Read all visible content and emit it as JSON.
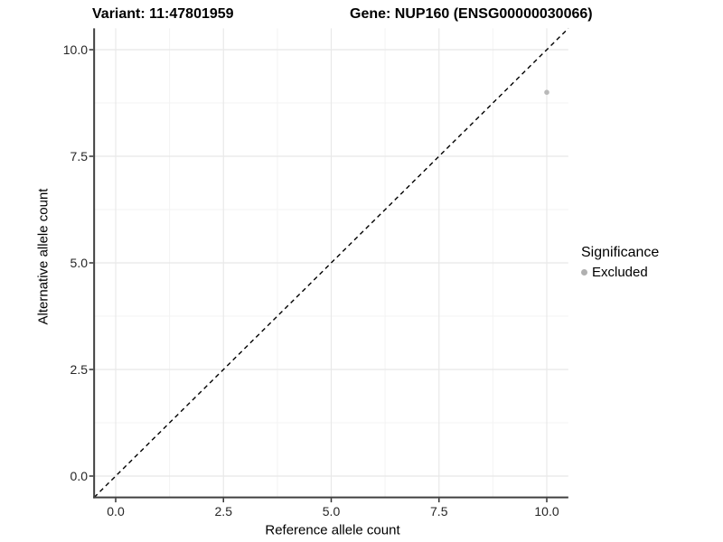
{
  "chart_data": {
    "type": "scatter",
    "title_left": "Variant: 11:47801959",
    "title_right": "Gene: NUP160 (ENSG00000030066)",
    "xlabel": "Reference allele count",
    "ylabel": "Alternative allele count",
    "xlim": [
      -0.5,
      10.5
    ],
    "ylim": [
      -0.5,
      10.5
    ],
    "x_ticks": [
      0.0,
      2.5,
      5.0,
      7.5,
      10.0
    ],
    "y_ticks": [
      0.0,
      2.5,
      5.0,
      7.5,
      10.0
    ],
    "x_tick_labels": [
      "0.0",
      "2.5",
      "5.0",
      "7.5",
      "10.0"
    ],
    "y_tick_labels": [
      "0.0",
      "2.5",
      "5.0",
      "7.5",
      "10.0"
    ],
    "x_minor_ticks": [
      1.25,
      3.75,
      6.25,
      8.75
    ],
    "y_minor_ticks": [
      1.25,
      3.75,
      6.25,
      8.75
    ],
    "grid": true,
    "reference_line": {
      "style": "dashed",
      "from": [
        -0.5,
        -0.5
      ],
      "to": [
        10.5,
        10.5
      ],
      "color": "#000000"
    },
    "series": [
      {
        "name": "Excluded",
        "color": "#b9b9b9",
        "points": [
          [
            10,
            9
          ]
        ]
      }
    ],
    "legend": {
      "title": "Significance",
      "position": "right",
      "entries": [
        {
          "label": "Excluded",
          "color": "#b0b0b0"
        }
      ]
    },
    "style": {
      "background": "#ffffff",
      "grid_major": "#e8e8e8",
      "grid_minor": "#f3f3f3",
      "axis_line": "#404040",
      "tick_color": "#333333",
      "text_color": "#000000",
      "point_color": "#b9b9b9"
    }
  }
}
